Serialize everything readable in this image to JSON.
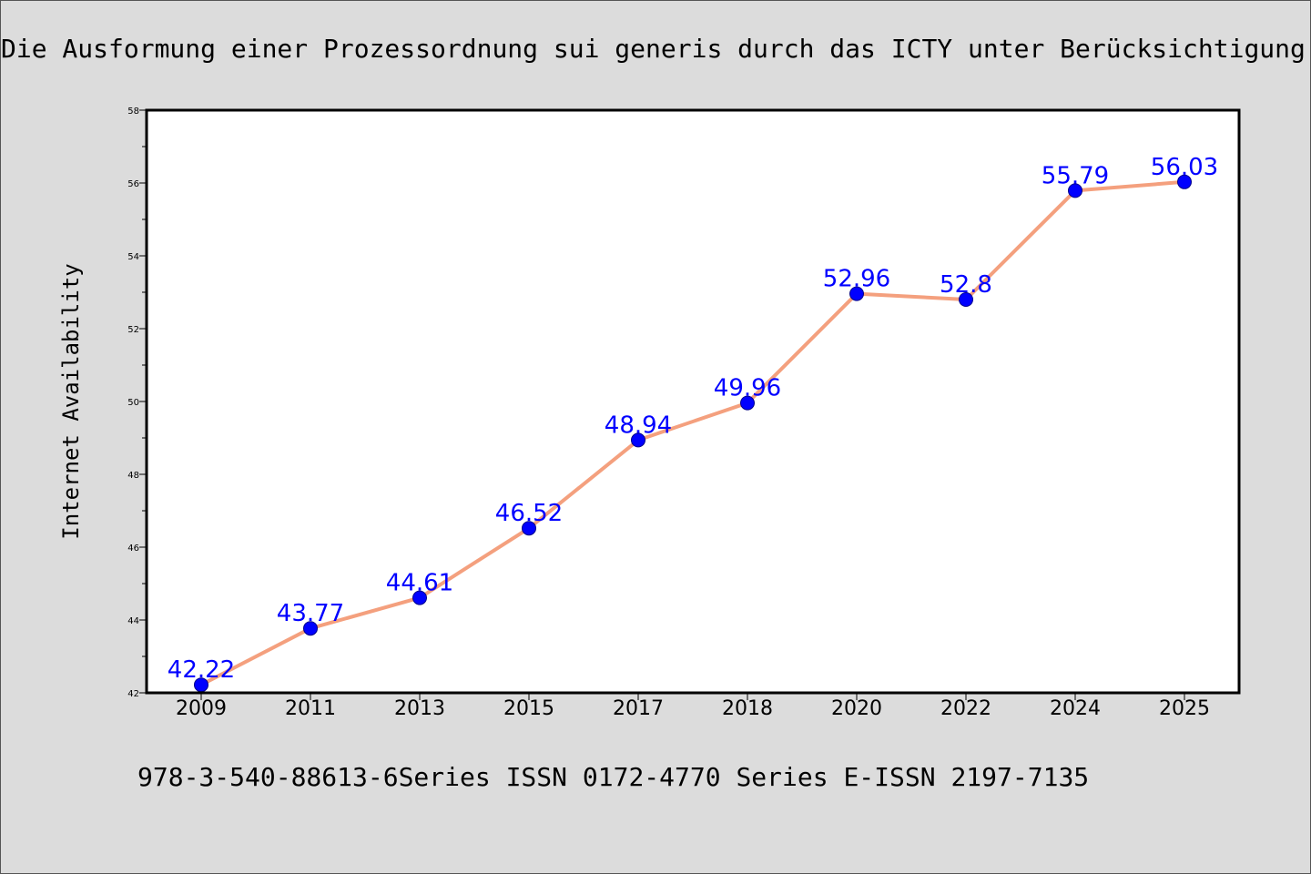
{
  "header": {
    "title": "Die Ausformung einer Prozessordnung sui generis durch das ICTY unter Berücksichtigung des Fair Trial-Grundsatzes"
  },
  "footer": {
    "text": "978-3-540-88613-6Series ISSN 0172-4770 Series E-ISSN 2197-7135"
  },
  "chart_data": {
    "type": "line",
    "title": "Die Ausformung einer Prozessordnung sui generis durch das ICTY unter Berücksichtigung des Fair Trial-Grundsatzes",
    "xlabel": "",
    "ylabel": "Internet Availability",
    "categories": [
      "2009",
      "2011",
      "2013",
      "2015",
      "2017",
      "2018",
      "2020",
      "2022",
      "2024",
      "2025"
    ],
    "series": [
      {
        "values": [
          42.22,
          43.77,
          44.61,
          46.52,
          48.94,
          49.96,
          52.96,
          52.8,
          55.79,
          56.03
        ]
      }
    ],
    "data_labels": [
      "42.22",
      "43.77",
      "44.61",
      "46.52",
      "48.94",
      "49.96",
      "52.96",
      "52.8",
      "55.79",
      "56.03"
    ],
    "ylim": [
      42,
      58
    ],
    "yticks": [
      42,
      44,
      46,
      48,
      50,
      52,
      54,
      56,
      58
    ],
    "grid": false,
    "legend": "none",
    "colors": {
      "line": "#f4a07e",
      "marker": "#0000ff",
      "marker_edge": "#00008b",
      "label": "#0000ff",
      "plot_background": "#ffffff",
      "page_background": "#dcdcdc"
    }
  }
}
